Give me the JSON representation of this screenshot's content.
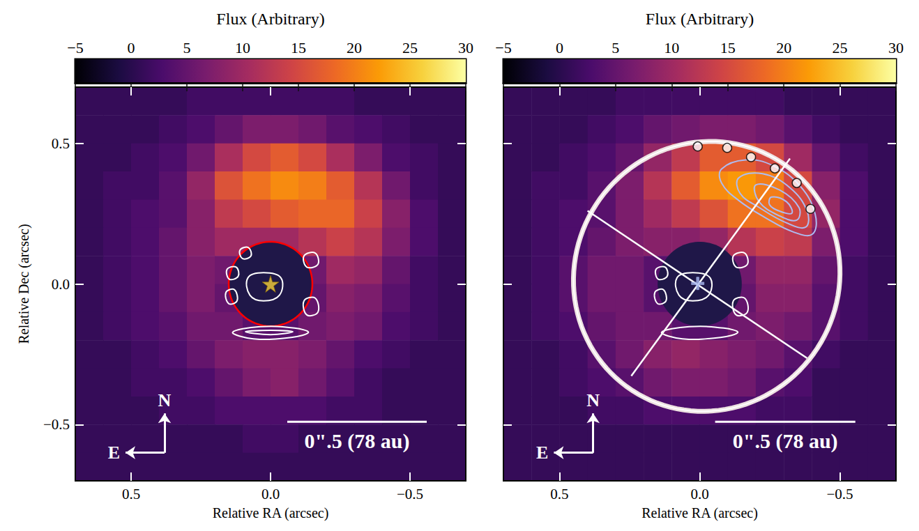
{
  "chart_data": [
    {
      "type": "heatmap",
      "x_label": "Relative RA (arcsec)",
      "y_label": "Relative Dec (arcsec)",
      "xlim": [
        0.7,
        -0.7
      ],
      "ylim": [
        -0.7,
        0.7
      ],
      "xticks": [
        0.5,
        {
          "value": 0,
          "label": "0.0"
        },
        {
          "value": -0.5,
          "label": "−0.5"
        }
      ],
      "yticks": [
        {
          "value": -0.5,
          "label": "−0.5"
        },
        {
          "value": 0,
          "label": "0.0"
        },
        0.5
      ],
      "colorbar": {
        "title": "Flux (Arbitrary)",
        "range": [
          -5,
          30
        ],
        "ticks": [
          {
            "value": -5,
            "label": "−5"
          },
          0,
          5,
          10,
          15,
          20,
          25,
          30
        ]
      },
      "x": [
        0.65,
        0.55,
        0.45,
        0.35,
        0.25,
        0.15,
        0.05,
        -0.05,
        -0.15,
        -0.25,
        -0.35,
        -0.45,
        -0.55,
        -0.65
      ],
      "y": [
        0.65,
        0.55,
        0.45,
        0.35,
        0.25,
        0.15,
        0.05,
        -0.05,
        -0.15,
        -0.25,
        -0.35,
        -0.45,
        -0.55,
        -0.65
      ],
      "cells": [
        [
          1,
          1,
          1,
          1,
          2,
          2,
          2,
          2,
          2,
          2,
          1,
          1,
          1,
          1
        ],
        [
          1,
          1,
          1,
          2,
          3,
          5,
          7,
          7,
          6,
          4,
          3,
          2,
          1,
          1
        ],
        [
          1,
          1,
          2,
          3,
          6,
          11,
          15,
          17,
          15,
          11,
          7,
          3,
          2,
          1
        ],
        [
          1,
          2,
          2,
          4,
          9,
          16,
          19,
          21,
          20,
          17,
          12,
          6,
          2,
          1
        ],
        [
          1,
          2,
          3,
          4,
          8,
          13,
          15,
          17,
          18,
          18,
          14,
          8,
          3,
          1
        ],
        [
          1,
          2,
          3,
          5,
          8,
          10,
          10,
          10,
          12,
          14,
          12,
          7,
          3,
          1
        ],
        [
          1,
          2,
          3,
          5,
          7,
          6,
          3,
          3,
          6,
          10,
          9,
          5,
          2,
          1
        ],
        [
          1,
          2,
          3,
          5,
          7,
          5,
          2,
          2,
          5,
          8,
          7,
          4,
          2,
          1
        ],
        [
          1,
          2,
          3,
          4,
          6,
          6,
          4,
          4,
          6,
          7,
          6,
          3,
          2,
          1
        ],
        [
          1,
          1,
          2,
          3,
          5,
          7,
          8,
          8,
          7,
          5,
          3,
          2,
          1,
          1
        ],
        [
          1,
          1,
          2,
          2,
          3,
          5,
          7,
          8,
          6,
          4,
          2,
          1,
          1,
          1
        ],
        [
          1,
          1,
          1,
          2,
          2,
          3,
          3,
          3,
          3,
          2,
          2,
          1,
          1,
          1
        ],
        [
          1,
          1,
          1,
          1,
          1,
          1,
          2,
          2,
          1,
          1,
          1,
          1,
          1,
          1
        ],
        [
          1,
          1,
          1,
          1,
          1,
          1,
          1,
          1,
          1,
          1,
          1,
          1,
          1,
          1
        ]
      ],
      "mask": {
        "center": [
          0,
          0
        ],
        "radius": 0.15,
        "color": "#1f1748",
        "edge_color": "#ff0000"
      },
      "center_marker": {
        "marker": "star",
        "color": "#f5cf3a",
        "x": 0,
        "y": 0
      },
      "contours": [
        {
          "color": "#ffffff",
          "lines": [
            [
              [
                0.081,
                0.022
              ],
              [
                0.025,
                0.04
              ],
              [
                -0.037,
                0.022
              ],
              [
                -0.032,
                -0.04
              ],
              [
                0.025,
                -0.06
              ],
              [
                0.074,
                -0.04
              ]
            ],
            [
              [
                0.156,
                0.052
              ],
              [
                0.123,
                0.06
              ],
              [
                0.116,
                0.027
              ],
              [
                0.148,
                0.017
              ]
            ],
            [
              [
                0.16,
                -0.03
              ],
              [
                0.13,
                -0.02
              ],
              [
                0.12,
                -0.06
              ],
              [
                0.15,
                -0.07
              ]
            ],
            [
              [
                -0.12,
                0.1
              ],
              [
                -0.16,
                0.11
              ],
              [
                -0.17,
                0.07
              ],
              [
                -0.13,
                0.06
              ]
            ],
            [
              [
                -0.12,
                -0.06
              ],
              [
                -0.16,
                -0.05
              ],
              [
                -0.17,
                -0.1
              ],
              [
                -0.13,
                -0.11
              ]
            ],
            [
              [
                0.11,
                0.12
              ],
              [
                0.08,
                0.13
              ],
              [
                0.07,
                0.1
              ],
              [
                0.1,
                0.09
              ]
            ],
            [
              [
                0.136,
                -0.172
              ],
              [
                0.037,
                -0.152
              ],
              [
                -0.086,
                -0.157
              ],
              [
                -0.136,
                -0.172
              ],
              [
                -0.074,
                -0.19
              ],
              [
                0.062,
                -0.195
              ]
            ],
            [
              [
                0.09,
                -0.17
              ],
              [
                0.0,
                -0.165
              ],
              [
                -0.08,
                -0.17
              ],
              [
                0.0,
                -0.18
              ]
            ]
          ]
        }
      ],
      "scale_bar": {
        "label": "0\".5 (78 au)",
        "x_start": -0.06,
        "y": -0.49,
        "length": 0.5
      },
      "compass": {
        "x": 0.38,
        "y": -0.6,
        "length": 0.14,
        "north": "N",
        "east": "E"
      }
    },
    {
      "type": "heatmap",
      "x_label": "Relative RA (arcsec)",
      "tick_labels": "x",
      "xlim": [
        0.7,
        -0.7
      ],
      "ylim": [
        -0.7,
        0.7
      ],
      "xticks": [
        0.5,
        {
          "value": 0,
          "label": "0.0"
        },
        {
          "value": -0.5,
          "label": "−0.5"
        }
      ],
      "yticks": [
        -0.5,
        0,
        0.5
      ],
      "colorbar": {
        "title": "Flux (Arbitrary)",
        "range": [
          -5,
          30
        ],
        "ticks": [
          {
            "value": -5,
            "label": "−5"
          },
          0,
          5,
          10,
          15,
          20,
          25,
          30
        ]
      },
      "x": [
        0.65,
        0.55,
        0.45,
        0.35,
        0.25,
        0.15,
        0.05,
        -0.05,
        -0.15,
        -0.25,
        -0.35,
        -0.45,
        -0.55,
        -0.65
      ],
      "y": [
        0.65,
        0.55,
        0.45,
        0.35,
        0.25,
        0.15,
        0.05,
        -0.05,
        -0.15,
        -0.25,
        -0.35,
        -0.45,
        -0.55,
        -0.65
      ],
      "cells": [
        [
          1,
          1,
          1,
          1,
          2,
          2,
          2,
          2,
          2,
          2,
          1,
          1,
          1,
          1
        ],
        [
          1,
          1,
          1,
          2,
          3,
          5,
          6,
          7,
          7,
          6,
          4,
          2,
          1,
          1
        ],
        [
          1,
          1,
          2,
          3,
          5,
          9,
          13,
          17,
          17,
          15,
          10,
          5,
          2,
          1
        ],
        [
          1,
          2,
          2,
          4,
          7,
          12,
          17,
          21,
          22,
          20,
          15,
          8,
          3,
          1
        ],
        [
          1,
          2,
          3,
          4,
          7,
          10,
          13,
          16,
          19,
          19,
          15,
          9,
          3,
          1
        ],
        [
          1,
          2,
          3,
          5,
          7,
          8,
          8,
          9,
          12,
          14,
          13,
          7,
          3,
          1
        ],
        [
          1,
          2,
          4,
          6,
          6,
          4,
          2,
          3,
          6,
          9,
          9,
          5,
          2,
          1
        ],
        [
          1,
          2,
          4,
          6,
          6,
          4,
          2,
          2,
          5,
          8,
          8,
          4,
          2,
          1
        ],
        [
          1,
          2,
          3,
          5,
          6,
          6,
          4,
          4,
          6,
          7,
          6,
          4,
          2,
          1
        ],
        [
          1,
          1,
          2,
          4,
          6,
          8,
          9,
          8,
          7,
          6,
          4,
          2,
          1,
          1
        ],
        [
          1,
          1,
          2,
          3,
          4,
          6,
          7,
          7,
          6,
          4,
          3,
          1,
          1,
          1
        ],
        [
          1,
          1,
          1,
          2,
          2,
          3,
          3,
          3,
          3,
          2,
          2,
          1,
          1,
          1
        ],
        [
          1,
          1,
          1,
          1,
          1,
          1,
          1,
          1,
          1,
          1,
          1,
          1,
          1,
          1
        ],
        [
          1,
          1,
          1,
          1,
          1,
          1,
          1,
          1,
          1,
          1,
          1,
          1,
          1,
          1
        ]
      ],
      "mask": {
        "center": [
          0,
          0
        ],
        "radius": 0.15,
        "color": "#1f1748"
      },
      "center_marker": {
        "marker": "plus",
        "color": "#a9b8f0",
        "x": 0.007,
        "y": 0.002
      },
      "contours": [
        {
          "color": "#ffffff",
          "lines": [
            [
              [
                0.081,
                0.022
              ],
              [
                0.025,
                0.04
              ],
              [
                -0.037,
                0.022
              ],
              [
                -0.032,
                -0.04
              ],
              [
                0.025,
                -0.06
              ],
              [
                0.074,
                -0.04
              ]
            ],
            [
              [
                0.156,
                0.052
              ],
              [
                0.123,
                0.06
              ],
              [
                0.116,
                0.027
              ],
              [
                0.148,
                0.017
              ]
            ],
            [
              [
                0.16,
                -0.03
              ],
              [
                0.13,
                -0.02
              ],
              [
                0.12,
                -0.06
              ],
              [
                0.15,
                -0.07
              ]
            ],
            [
              [
                -0.12,
                0.1
              ],
              [
                -0.16,
                0.11
              ],
              [
                -0.17,
                0.07
              ],
              [
                -0.13,
                0.06
              ]
            ],
            [
              [
                -0.12,
                -0.06
              ],
              [
                -0.16,
                -0.05
              ],
              [
                -0.17,
                -0.1
              ],
              [
                -0.13,
                -0.11
              ]
            ],
            [
              [
                0.136,
                -0.172
              ],
              [
                0.037,
                -0.152
              ],
              [
                -0.086,
                -0.157
              ],
              [
                -0.136,
                -0.172
              ],
              [
                -0.074,
                -0.19
              ],
              [
                0.062,
                -0.195
              ]
            ]
          ]
        },
        {
          "color": "#aebcf2",
          "lines": [
            [
              [
                -0.078,
                0.409
              ],
              [
                -0.163,
                0.441
              ],
              [
                -0.261,
                0.421
              ],
              [
                -0.359,
                0.347
              ],
              [
                -0.412,
                0.247
              ],
              [
                -0.402,
                0.177
              ],
              [
                -0.334,
                0.185
              ],
              [
                -0.237,
                0.234
              ],
              [
                -0.139,
                0.297
              ],
              [
                -0.078,
                0.359
              ]
            ],
            [
              [
                -0.139,
                0.377
              ],
              [
                -0.224,
                0.392
              ],
              [
                -0.322,
                0.342
              ],
              [
                -0.383,
                0.259
              ],
              [
                -0.378,
                0.202
              ],
              [
                -0.31,
                0.217
              ],
              [
                -0.212,
                0.272
              ],
              [
                -0.144,
                0.322
              ]
            ],
            [
              [
                -0.2,
                0.352
              ],
              [
                -0.285,
                0.334
              ],
              [
                -0.354,
                0.272
              ],
              [
                -0.346,
                0.227
              ],
              [
                -0.285,
                0.242
              ],
              [
                -0.212,
                0.292
              ]
            ],
            [
              [
                -0.256,
                0.309
              ],
              [
                -0.31,
                0.292
              ],
              [
                -0.329,
                0.252
              ],
              [
                -0.285,
                0.259
              ],
              [
                -0.249,
                0.282
              ]
            ]
          ]
        }
      ],
      "ellipse": {
        "center": [
          -0.025,
          0.027
        ],
        "semi_major": 0.485,
        "semi_minor": 0.47,
        "pa": 324,
        "color": "#eee2e2"
      },
      "ellipse_axes": {
        "color": "#ffffff",
        "lines": [
          [
            [
              0.244,
              -0.327
            ],
            [
              -0.322,
              0.446
            ]
          ],
          [
            [
              0.4,
              0.26
            ],
            [
              -0.383,
              -0.264
            ]
          ]
        ]
      },
      "points": {
        "marker": "circle",
        "color": "#ffffff",
        "x": [
          0.007,
          -0.098,
          -0.183,
          -0.268,
          -0.346,
          -0.395
        ],
        "y": [
          0.489,
          0.484,
          0.451,
          0.411,
          0.359,
          0.267
        ]
      },
      "scale_bar": {
        "label": "0\".5 (78 au)",
        "x_start": -0.055,
        "y": -0.49,
        "length": 0.5
      },
      "compass": {
        "x": 0.38,
        "y": -0.6,
        "length": 0.14,
        "north": "N",
        "east": "E"
      }
    }
  ]
}
